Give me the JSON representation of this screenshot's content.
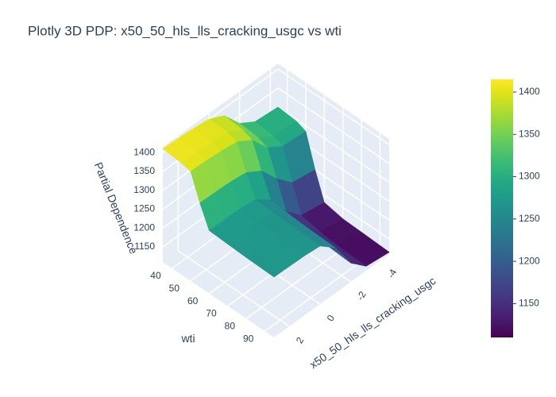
{
  "chart_data": {
    "type": "surface",
    "title": "Plotly 3D PDP: x50_50_hls_lls_cracking_usgc vs wti",
    "x_title": "x50_50_hls_lls_cracking_usgc",
    "y_title": "wti",
    "z_title": "Partial Dependence",
    "x": [
      -4.5,
      -3,
      -2,
      -1,
      0,
      1,
      2,
      3
    ],
    "y": [
      35,
      45,
      50,
      55,
      60,
      70,
      80,
      95
    ],
    "z": [
      [
        1300,
        1305,
        1330,
        1380,
        1400,
        1405,
        1408,
        1410
      ],
      [
        1295,
        1300,
        1325,
        1375,
        1398,
        1402,
        1405,
        1406
      ],
      [
        1285,
        1290,
        1315,
        1365,
        1390,
        1395,
        1398,
        1400
      ],
      [
        1200,
        1210,
        1250,
        1300,
        1325,
        1330,
        1332,
        1333
      ],
      [
        1130,
        1140,
        1180,
        1240,
        1270,
        1275,
        1276,
        1277
      ],
      [
        1120,
        1130,
        1170,
        1235,
        1268,
        1272,
        1273,
        1274
      ],
      [
        1118,
        1125,
        1165,
        1232,
        1266,
        1270,
        1271,
        1272
      ],
      [
        1115,
        1122,
        1160,
        1230,
        1264,
        1268,
        1269,
        1270
      ]
    ],
    "xlim": [
      -4.5,
      3
    ],
    "xticks": [
      -4,
      -2,
      0,
      2
    ],
    "ylim": [
      35,
      95
    ],
    "yticks": [
      40,
      50,
      60,
      70,
      80,
      90
    ],
    "zlim": [
      1110,
      1415
    ],
    "zticks": [
      1150,
      1200,
      1250,
      1300,
      1350,
      1400
    ],
    "clim": [
      1110,
      1415
    ],
    "cticks": [
      1150,
      1200,
      1250,
      1300,
      1350,
      1400
    ],
    "colorscale": "Viridis"
  }
}
